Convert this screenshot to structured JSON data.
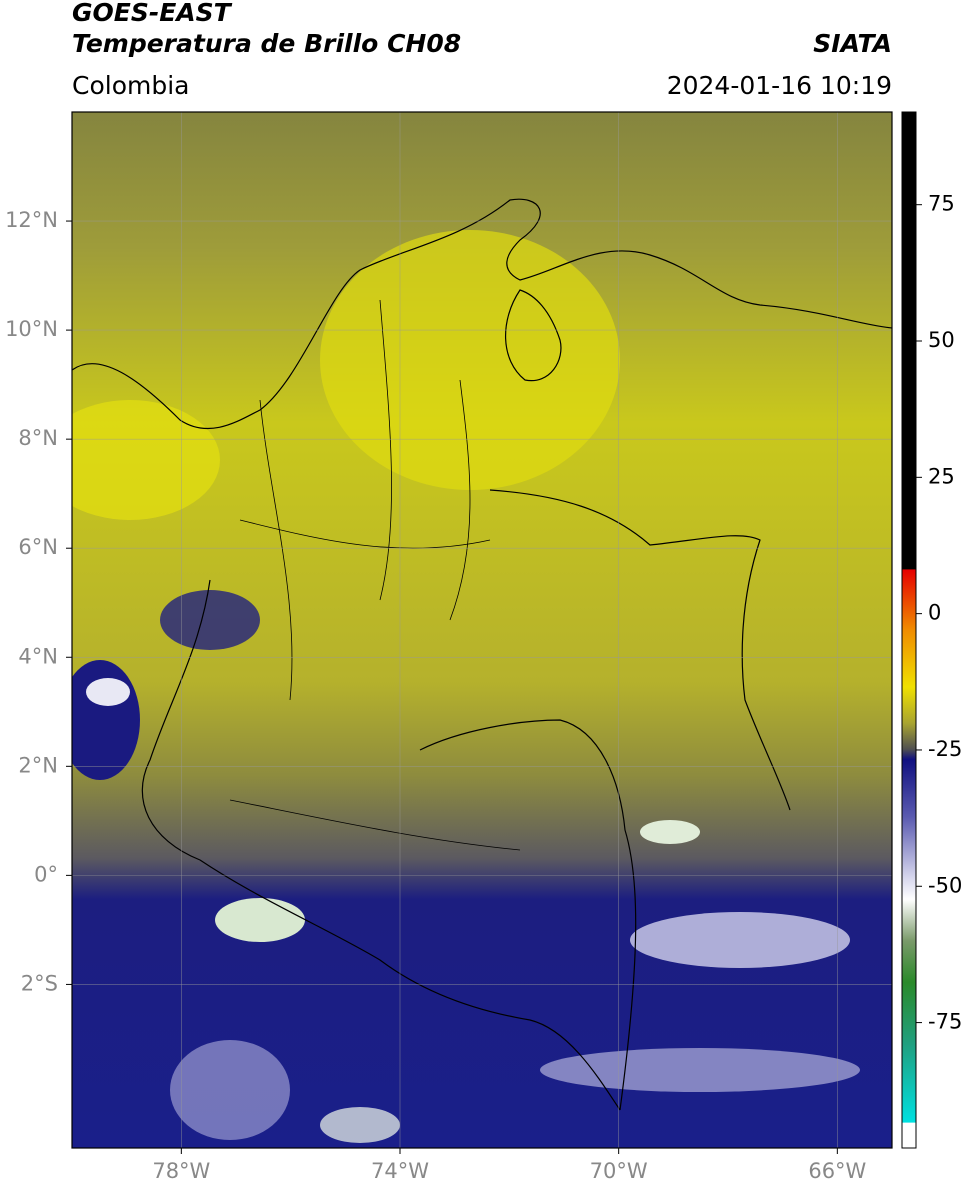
{
  "header": {
    "title": "GOES-EAST",
    "subtitle": "Temperatura de Brillo CH08",
    "source": "SIATA",
    "region": "Colombia",
    "datetime": "2024-01-16 10:19"
  },
  "map": {
    "lonlim": [
      -80,
      -65
    ],
    "latlim": [
      -5,
      14
    ],
    "lon_ticks": [
      {
        "value": -78,
        "label": "78°W"
      },
      {
        "value": -74,
        "label": "74°W"
      },
      {
        "value": -70,
        "label": "70°W"
      },
      {
        "value": -66,
        "label": "66°W"
      }
    ],
    "lat_ticks": [
      {
        "value": 12,
        "label": "12°N"
      },
      {
        "value": 10,
        "label": "10°N"
      },
      {
        "value": 8,
        "label": "8°N"
      },
      {
        "value": 6,
        "label": "6°N"
      },
      {
        "value": 4,
        "label": "4°N"
      },
      {
        "value": 2,
        "label": "2°N"
      },
      {
        "value": 0,
        "label": "0°"
      },
      {
        "value": -2,
        "label": "2°S"
      }
    ]
  },
  "colorbar": {
    "lim": [
      -98,
      92
    ],
    "ticks": [
      75,
      50,
      25,
      0,
      -25,
      -50,
      -75
    ]
  }
}
